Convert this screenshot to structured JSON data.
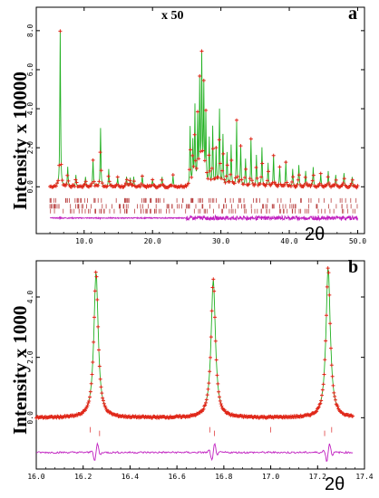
{
  "chart_data": [
    {
      "panel": "a",
      "type": "line",
      "panel_label": "a",
      "annotation": "x 50",
      "ylabel": "Intensity x 10000",
      "xlabel": "2θ",
      "xlim": [
        3,
        51
      ],
      "ylim": [
        -2.4,
        9.2
      ],
      "xticks": [
        10.0,
        20.0,
        30.0,
        40.0,
        50.0
      ],
      "xtick_labels": [
        "10.0",
        "20.0",
        "30.0",
        "40.0",
        "50.0"
      ],
      "yticks": [
        0.0,
        2.0,
        4.0,
        6.0,
        8.0
      ],
      "ytick_labels": [
        "0.0",
        "2.0",
        "4.0",
        "6.0",
        "8.0"
      ],
      "colors": {
        "observed": "#e0281a",
        "calculated": "#22b022",
        "difference": "#c020c0",
        "reflections": "#b84040"
      },
      "peaks": [
        {
          "x": 6.5,
          "y": 8.0
        },
        {
          "x": 7.6,
          "y": 1.0
        },
        {
          "x": 8.8,
          "y": 0.6
        },
        {
          "x": 10.2,
          "y": 0.5
        },
        {
          "x": 11.3,
          "y": 1.4
        },
        {
          "x": 12.4,
          "y": 3.0
        },
        {
          "x": 13.6,
          "y": 0.9
        },
        {
          "x": 14.9,
          "y": 0.5
        },
        {
          "x": 16.2,
          "y": 0.5
        },
        {
          "x": 16.75,
          "y": 0.45
        },
        {
          "x": 17.25,
          "y": 0.5
        },
        {
          "x": 18.5,
          "y": 0.6
        },
        {
          "x": 20.0,
          "y": 0.4
        },
        {
          "x": 21.4,
          "y": 0.5
        },
        {
          "x": 23.0,
          "y": 0.6
        },
        {
          "x": 25.5,
          "y": 3.0
        },
        {
          "x": 25.9,
          "y": 2.2
        },
        {
          "x": 26.2,
          "y": 4.0
        },
        {
          "x": 26.6,
          "y": 3.4
        },
        {
          "x": 26.9,
          "y": 5.2
        },
        {
          "x": 27.2,
          "y": 6.5
        },
        {
          "x": 27.5,
          "y": 5.0
        },
        {
          "x": 27.8,
          "y": 3.6
        },
        {
          "x": 28.3,
          "y": 2.4
        },
        {
          "x": 28.8,
          "y": 3.0
        },
        {
          "x": 29.3,
          "y": 1.9
        },
        {
          "x": 29.8,
          "y": 3.9
        },
        {
          "x": 30.3,
          "y": 2.6
        },
        {
          "x": 30.9,
          "y": 1.7
        },
        {
          "x": 31.5,
          "y": 2.1
        },
        {
          "x": 32.3,
          "y": 3.3
        },
        {
          "x": 32.9,
          "y": 2.0
        },
        {
          "x": 33.6,
          "y": 1.4
        },
        {
          "x": 34.4,
          "y": 2.4
        },
        {
          "x": 35.2,
          "y": 1.6
        },
        {
          "x": 36.0,
          "y": 2.0
        },
        {
          "x": 36.9,
          "y": 1.2
        },
        {
          "x": 37.7,
          "y": 1.6
        },
        {
          "x": 38.6,
          "y": 1.0
        },
        {
          "x": 39.5,
          "y": 1.3
        },
        {
          "x": 40.5,
          "y": 0.9
        },
        {
          "x": 41.4,
          "y": 1.1
        },
        {
          "x": 42.4,
          "y": 0.8
        },
        {
          "x": 43.5,
          "y": 1.0
        },
        {
          "x": 44.6,
          "y": 0.7
        },
        {
          "x": 45.7,
          "y": 0.8
        },
        {
          "x": 46.8,
          "y": 0.6
        },
        {
          "x": 48.0,
          "y": 0.7
        },
        {
          "x": 49.2,
          "y": 0.5
        }
      ],
      "scaled_region_start": 25.0,
      "data_range": [
        5.0,
        50.0
      ],
      "reflection_rows_y": [
        -0.7,
        -1.0,
        -1.25
      ],
      "difference_baseline_y": -1.6
    },
    {
      "panel": "b",
      "type": "line",
      "panel_label": "b",
      "ylabel": "Intensity x 1000",
      "xlabel": "2θ",
      "xlim": [
        16.0,
        17.4
      ],
      "ylim": [
        -1.7,
        5.2
      ],
      "xticks": [
        16.0,
        16.2,
        16.4,
        16.6,
        16.8,
        17.0,
        17.2,
        17.4
      ],
      "xtick_labels": [
        "16.0",
        "16.2",
        "16.4",
        "16.6",
        "16.8",
        "17.0",
        "17.2",
        "17.4"
      ],
      "yticks": [
        0.0,
        2.0,
        4.0
      ],
      "ytick_labels": [
        "0.0",
        "2.0",
        "4.0"
      ],
      "colors": {
        "observed": "#e0281a",
        "calculated": "#22b022",
        "difference": "#c020c0",
        "reflections": "#e04040"
      },
      "peaks": [
        {
          "x": 16.255,
          "y": 4.85
        },
        {
          "x": 16.755,
          "y": 4.6
        },
        {
          "x": 17.245,
          "y": 5.0
        }
      ],
      "reflections": [
        16.23,
        16.27,
        16.74,
        16.76,
        17.0,
        17.23,
        17.26
      ],
      "reflection_row_y": -0.4,
      "difference_baseline_y": -1.15,
      "data_range": [
        16.0,
        17.35
      ]
    }
  ]
}
